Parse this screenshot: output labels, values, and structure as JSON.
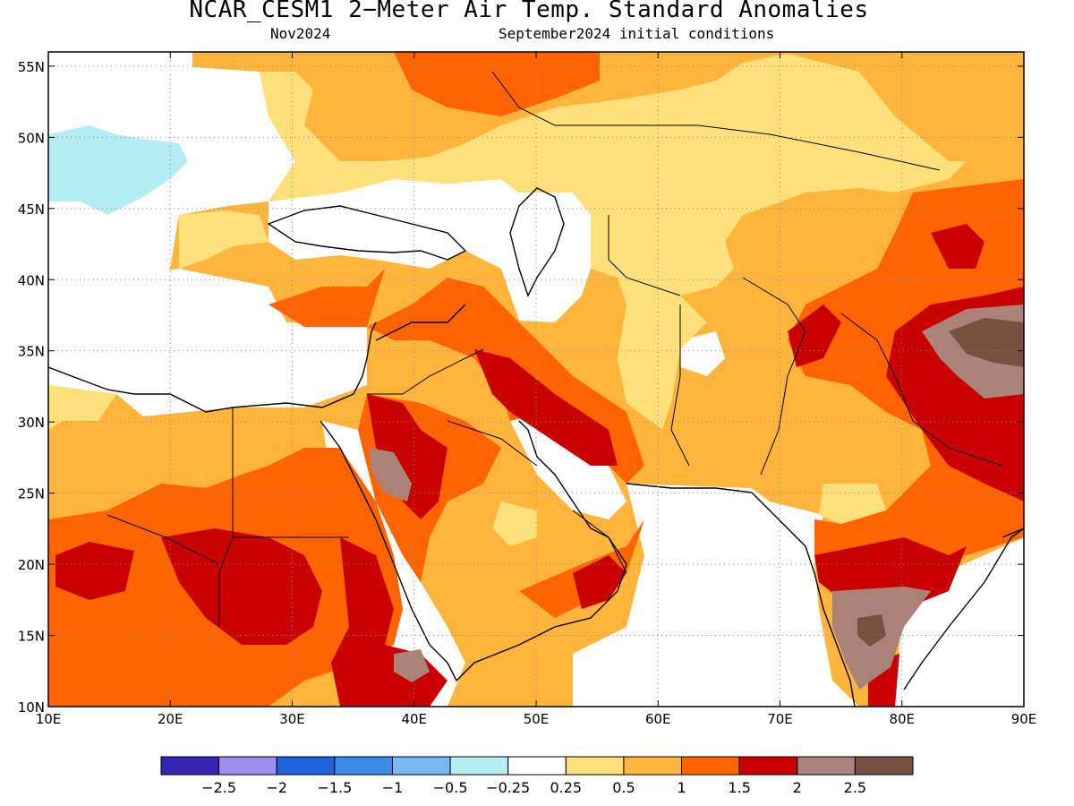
{
  "title": "NCAR_CESM1 2−Meter Air Temp. Standard Anomalies",
  "valid_month": "Nov2024",
  "initial_conditions": "September2024 initial conditions",
  "map": {
    "lon_range": [
      10,
      90
    ],
    "lat_range": [
      10,
      56
    ],
    "lon_tick_labels": [
      "10E",
      "20E",
      "30E",
      "40E",
      "50E",
      "60E",
      "70E",
      "80E",
      "90E"
    ],
    "lat_tick_labels": [
      "10N",
      "15N",
      "20N",
      "25N",
      "30N",
      "35N",
      "40N",
      "45N",
      "50N",
      "55N"
    ],
    "gridlines": "dotted"
  },
  "colorbar": {
    "colors": [
      "#3324b4",
      "#9e8cf0",
      "#1f63dc",
      "#3d8bea",
      "#78b8f0",
      "#b4eef4",
      "#ffffff",
      "#ffe07a",
      "#ffb43c",
      "#ff6400",
      "#c80000",
      "#aa8278",
      "#785040"
    ],
    "labels": [
      "−2.5",
      "−2",
      "−1.5",
      "−1",
      "−0.5",
      "−0.25",
      "0.25",
      "0.5",
      "1",
      "1.5",
      "2",
      "2.5"
    ]
  },
  "palette": {
    "light_blue": "#b4eef4",
    "light_yellow": "#ffe07a",
    "light_orange": "#ffb43c",
    "orange": "#ff6400",
    "red": "#c80000",
    "light_brown": "#aa8278",
    "brown": "#785040"
  }
}
